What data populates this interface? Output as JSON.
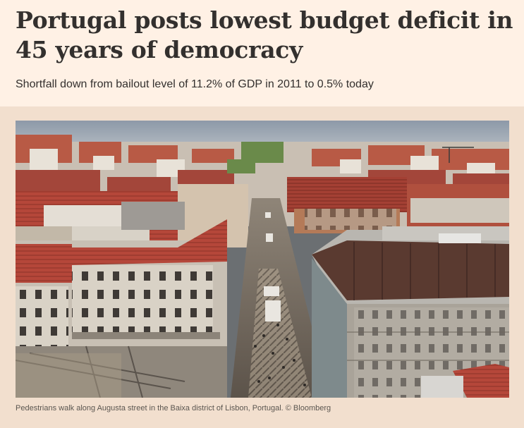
{
  "article": {
    "headline": "Portugal posts lowest budget deficit in 45 years of democracy",
    "standfirst": "Shortfall down from bailout level of 11.2% of GDP in 2011 to 0.5% today",
    "image": {
      "subject": "aerial-view-of-lisbon-street-with-red-tiled-roofs",
      "caption": "Pedestrians walk along Augusta street in the Baixa district of Lisbon, Portugal. © Bloomberg"
    }
  },
  "colors": {
    "page_background": "#fff1e5",
    "text": "#33302e",
    "roof_terracotta": "#b0483a",
    "sky": "#a9b4c0"
  }
}
